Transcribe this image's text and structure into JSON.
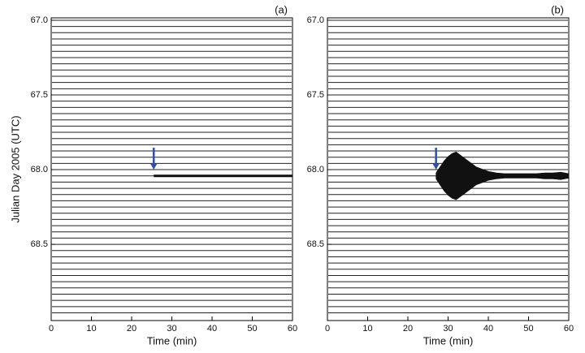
{
  "chart_data": [
    {
      "type": "seismogram",
      "panel_label": "(a)",
      "x_label": "Time (min)",
      "y_label": "Julian Day 2005 (UTC)",
      "xlim": [
        0,
        60
      ],
      "xticks": [
        0,
        10,
        20,
        30,
        40,
        50,
        60
      ],
      "ylim": [
        66.984,
        69.01
      ],
      "yticks": [
        {
          "value": 67,
          "label": "67.0"
        },
        {
          "value": 67.5,
          "label": "67.5"
        },
        {
          "value": 68,
          "label": "68.0"
        },
        {
          "value": 68.5,
          "label": "68.5"
        }
      ],
      "traces": [
        67,
        67.0417,
        67.0833,
        67.125,
        67.1667,
        67.2083,
        67.25,
        67.2917,
        67.3333,
        67.375,
        67.4167,
        67.4583,
        67.5,
        67.5417,
        67.5833,
        67.625,
        67.6667,
        67.7083,
        67.75,
        67.7917,
        67.8333,
        67.875,
        67.9167,
        67.9583,
        68,
        68.0417,
        68.0833,
        68.125,
        68.1667,
        68.2083,
        68.25,
        68.2917,
        68.3333,
        68.375,
        68.4167,
        68.4583,
        68.5,
        68.5417,
        68.5833,
        68.625,
        68.6667,
        68.7083,
        68.75,
        68.7917,
        68.8333,
        68.875,
        68.9167,
        68.9583
      ],
      "event": {
        "trace": 68.0417,
        "start": 25.5,
        "end": 60
      },
      "arrow": {
        "x": 25.5,
        "y": 68.0,
        "color": "#2f4fa8"
      }
    },
    {
      "type": "seismogram",
      "panel_label": "(b)",
      "x_label": "Time (min)",
      "xlim": [
        0,
        60
      ],
      "xticks": [
        0,
        10,
        20,
        30,
        40,
        50,
        60
      ],
      "ylim": [
        66.984,
        69.01
      ],
      "yticks": [
        {
          "value": 67,
          "label": "67.0"
        },
        {
          "value": 67.5,
          "label": "67.5"
        },
        {
          "value": 68,
          "label": "68.0"
        },
        {
          "value": 68.5,
          "label": "68.5"
        }
      ],
      "traces": [
        67,
        67.0417,
        67.0833,
        67.125,
        67.1667,
        67.2083,
        67.25,
        67.2917,
        67.3333,
        67.375,
        67.4167,
        67.4583,
        67.5,
        67.5417,
        67.5833,
        67.625,
        67.6667,
        67.7083,
        67.75,
        67.7917,
        67.8333,
        67.875,
        67.9167,
        67.9583,
        68,
        68.0417,
        68.0833,
        68.125,
        68.1667,
        68.2083,
        68.25,
        68.2917,
        68.3333,
        68.375,
        68.4167,
        68.4583,
        68.5,
        68.5417,
        68.5833,
        68.625,
        68.6667,
        68.7083,
        68.75,
        68.7917,
        68.8333,
        68.875,
        68.9167,
        68.9583
      ],
      "event": {
        "trace": 68.0417,
        "start": 27,
        "end": 60
      },
      "envelope_x": [
        27,
        28,
        29,
        30,
        31,
        32,
        33,
        34,
        35,
        36,
        37,
        38,
        39,
        40,
        42,
        44,
        46,
        48,
        50,
        52,
        54,
        56,
        58,
        59,
        60
      ],
      "envelope_amp": [
        0.02,
        0.06,
        0.1,
        0.13,
        0.15,
        0.16,
        0.14,
        0.12,
        0.1,
        0.08,
        0.06,
        0.05,
        0.04,
        0.03,
        0.02,
        0.015,
        0.015,
        0.015,
        0.015,
        0.015,
        0.02,
        0.02,
        0.025,
        0.02,
        0.015
      ],
      "arrow": {
        "x": 27,
        "y": 68.0,
        "color": "#2f4fa8"
      }
    }
  ]
}
